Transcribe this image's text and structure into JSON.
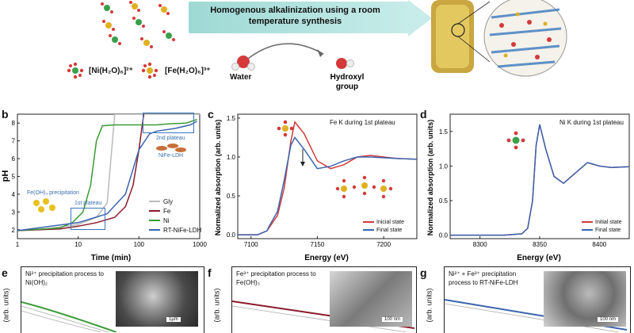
{
  "header": {
    "banner_text": "Homogenous alkalinization using a room temperature synthesis",
    "ni_complex": "[Ni(H₂O)₆]²⁺",
    "fe_complex": "[Fe(H₂O)₆]³⁺",
    "water_label": "Water",
    "hydroxyl_label": "Hydroxyl group"
  },
  "panels": {
    "b": {
      "letter": "b",
      "ylabel": "pH",
      "xlabel": "Time (min)",
      "annotations": {
        "fe_precip": "Fe(OH)₃ precipitation",
        "plateau1": "1st plateau",
        "plateau2": "2nd plateau",
        "nife": "NiFe-LDH"
      },
      "legend": [
        "Gly",
        "Fe",
        "Ni",
        "RT-NiFe-LDH"
      ]
    },
    "c": {
      "letter": "c",
      "ylabel": "Normalized absorption (arb. units)",
      "xlabel": "Energy (eV)",
      "title": "Fe K during 1st plateau",
      "legend": [
        "Inicial state",
        "Final state"
      ]
    },
    "d": {
      "letter": "d",
      "ylabel": "Normalized absorption (arb. units)",
      "xlabel": "Energy (eV)",
      "title": "Ni K during 1st plateau",
      "legend": [
        "Initial state",
        "Final state"
      ]
    },
    "e": {
      "letter": "e",
      "title": "Ni²⁺ precipitation process to Ni(OH)₂",
      "scale": "1µm",
      "ylabel": "(arb. units)"
    },
    "f": {
      "letter": "f",
      "title": "Fe³⁺ precipitation process to Fe(OH)₃",
      "scale": "100 nm",
      "ylabel": "(arb. units)"
    },
    "g": {
      "letter": "g",
      "title": "Ni²⁺ + Fe³⁺ precipitation process to RT-NiFe-LDH",
      "scale": "100 nm",
      "ylabel": "(arb. units)"
    }
  },
  "chart_data": [
    {
      "type": "line",
      "panel": "b",
      "xlabel": "Time (min)",
      "ylabel": "pH",
      "xscale": "log",
      "xlim": [
        1,
        1000
      ],
      "ylim": [
        1.5,
        8.5
      ],
      "xticks": [
        1,
        10,
        100,
        1000
      ],
      "yticks": [
        2,
        3,
        4,
        5,
        6,
        7,
        8
      ],
      "series": [
        {
          "name": "Gly",
          "color": "#bbbbbb",
          "x": [
            1,
            3,
            10,
            20,
            30,
            40,
            100,
            1000
          ],
          "y": [
            1.95,
            2.05,
            2.3,
            2.7,
            3.5,
            8.5,
            8.5,
            8.5
          ]
        },
        {
          "name": "Fe",
          "color": "#8b1a2b",
          "x": [
            1,
            5,
            10,
            20,
            40,
            60,
            80,
            100,
            120
          ],
          "y": [
            1.95,
            2.05,
            2.2,
            2.4,
            2.7,
            3.3,
            4.5,
            6.5,
            8.5
          ]
        },
        {
          "name": "Ni",
          "color": "#3a9a35",
          "x": [
            1,
            5,
            8,
            12,
            16,
            20,
            25,
            40,
            100,
            200,
            300,
            600,
            900
          ],
          "y": [
            1.95,
            2.1,
            2.4,
            3.0,
            4.5,
            7.0,
            7.85,
            7.9,
            7.9,
            7.9,
            7.95,
            8.0,
            8.2
          ]
        },
        {
          "name": "RT-NiFe-LDH",
          "color": "#3a64b0",
          "x": [
            1,
            10,
            30,
            60,
            100,
            150,
            200,
            400,
            700,
            900
          ],
          "y": [
            1.95,
            2.4,
            2.9,
            4.0,
            6.5,
            7.4,
            7.55,
            7.7,
            7.9,
            8.1
          ]
        }
      ]
    },
    {
      "type": "line",
      "panel": "c",
      "xlabel": "Energy (eV)",
      "ylabel": "Normalized absorption (arb. units)",
      "xlim": [
        7090,
        7225
      ],
      "ylim": [
        -0.05,
        1.55
      ],
      "xticks": [
        7100,
        7150,
        7200
      ],
      "yticks": [
        0.0,
        0.5,
        1.0,
        1.5
      ],
      "series": [
        {
          "name": "Inicial state",
          "color": "#d23a3a",
          "x": [
            7090,
            7105,
            7112,
            7114,
            7120,
            7125,
            7130,
            7133,
            7140,
            7150,
            7160,
            7170,
            7180,
            7190,
            7200,
            7210,
            7225
          ],
          "y": [
            0.0,
            0.0,
            0.05,
            0.1,
            0.25,
            0.6,
            1.2,
            1.45,
            1.3,
            0.95,
            0.85,
            0.9,
            1.0,
            1.02,
            1.0,
            0.98,
            0.97
          ]
        },
        {
          "name": "Final state",
          "color": "#3a64b0",
          "x": [
            7090,
            7105,
            7112,
            7114,
            7120,
            7125,
            7130,
            7133,
            7140,
            7150,
            7160,
            7170,
            7180,
            7190,
            7200,
            7210,
            7225
          ],
          "y": [
            0.0,
            0.0,
            0.05,
            0.12,
            0.3,
            0.7,
            1.15,
            1.25,
            1.1,
            0.85,
            0.88,
            0.95,
            1.0,
            1.0,
            0.99,
            0.98,
            0.97
          ]
        }
      ]
    },
    {
      "type": "line",
      "panel": "d",
      "xlabel": "Energy (eV)",
      "ylabel": "Normalized absorption (arb. units)",
      "xlim": [
        8275,
        8425
      ],
      "ylim": [
        -0.05,
        1.75
      ],
      "xticks": [
        8300,
        8350,
        8400
      ],
      "yticks": [
        0.0,
        0.5,
        1.0,
        1.5
      ],
      "series": [
        {
          "name": "Initial state",
          "color": "#d23a3a",
          "x": [
            8275,
            8320,
            8335,
            8340,
            8344,
            8347,
            8350,
            8355,
            8362,
            8370,
            8380,
            8390,
            8400,
            8410,
            8425
          ],
          "y": [
            0.0,
            0.0,
            0.02,
            0.1,
            0.5,
            1.3,
            1.6,
            1.25,
            0.85,
            0.75,
            0.9,
            1.05,
            1.0,
            0.98,
            0.99
          ]
        },
        {
          "name": "Final state",
          "color": "#3a64b0",
          "x": [
            8275,
            8320,
            8335,
            8340,
            8344,
            8347,
            8350,
            8355,
            8362,
            8370,
            8380,
            8390,
            8400,
            8410,
            8425
          ],
          "y": [
            0.0,
            0.0,
            0.02,
            0.1,
            0.5,
            1.3,
            1.6,
            1.25,
            0.85,
            0.75,
            0.9,
            1.05,
            1.0,
            0.98,
            0.99
          ]
        }
      ]
    }
  ]
}
